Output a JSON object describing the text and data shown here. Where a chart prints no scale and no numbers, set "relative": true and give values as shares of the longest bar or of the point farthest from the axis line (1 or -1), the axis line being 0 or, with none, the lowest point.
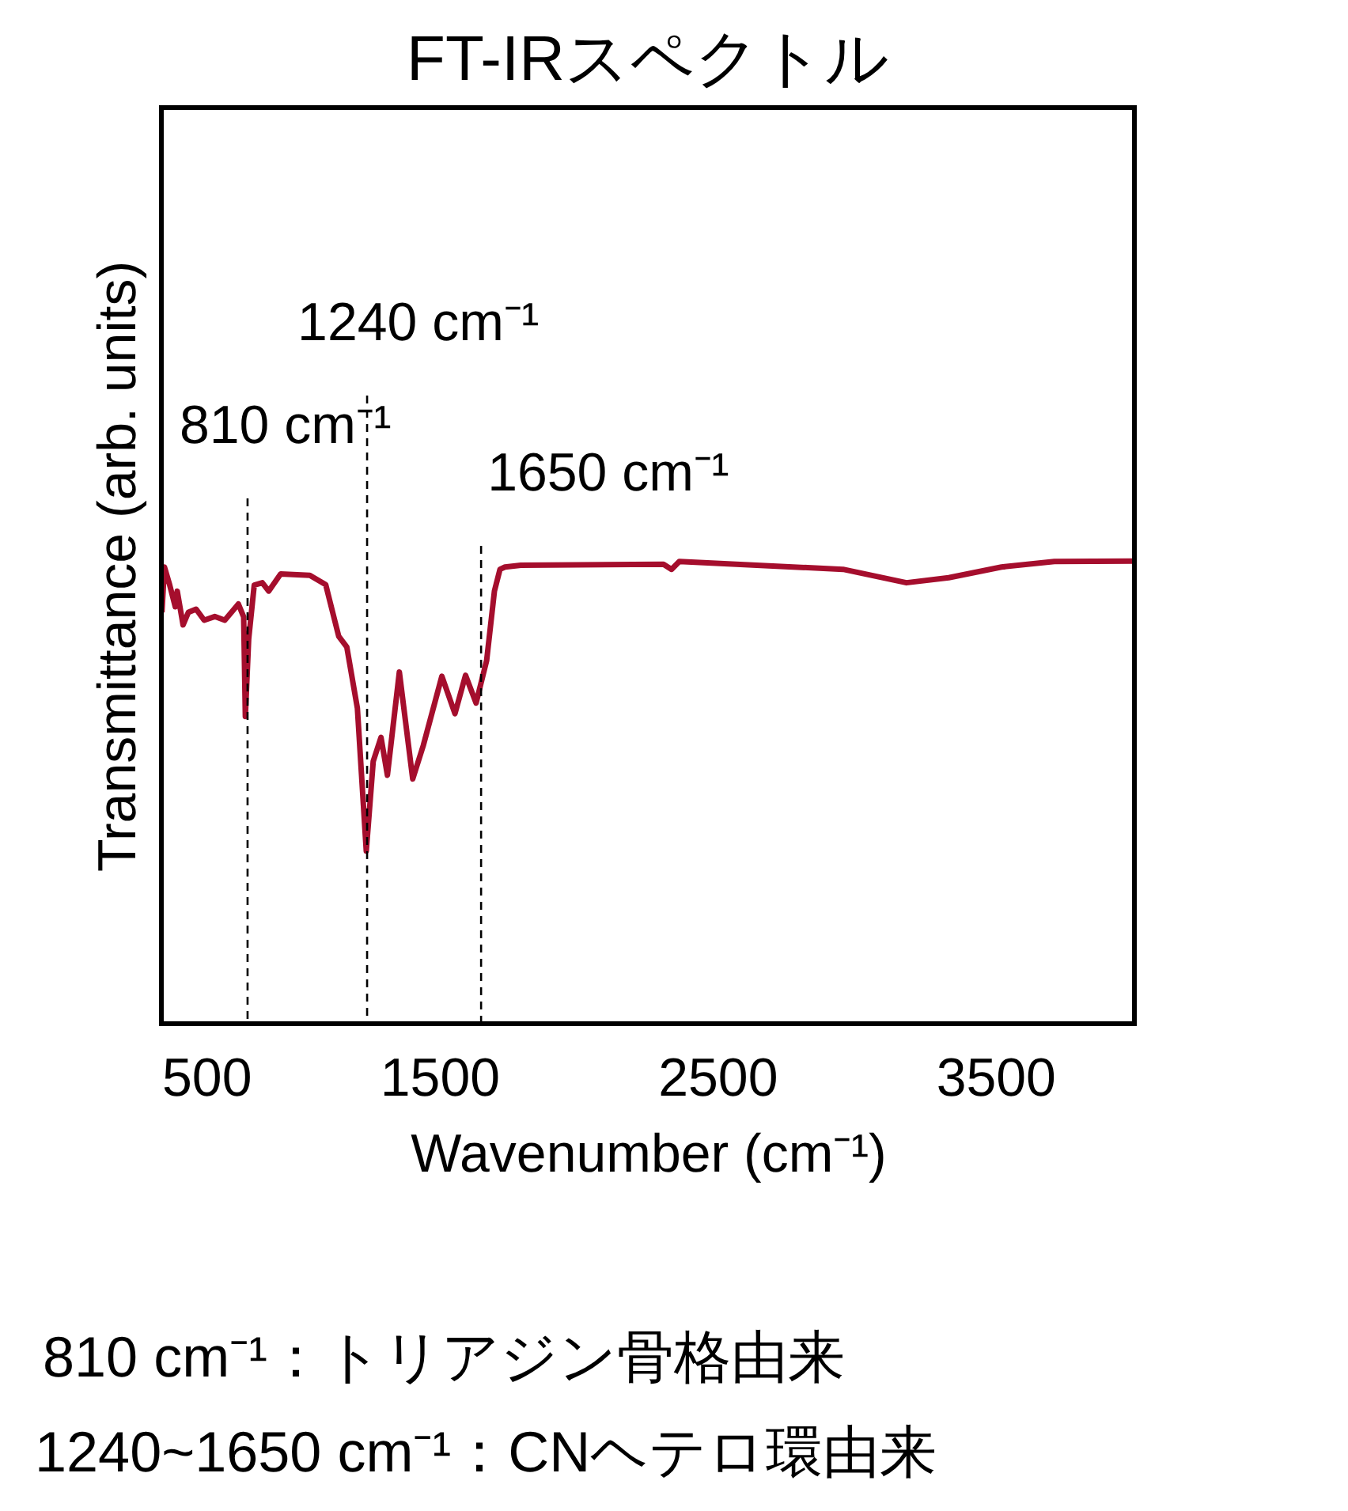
{
  "chart_data": {
    "type": "line",
    "title": "FT-IRスペクトル",
    "xlabel": "Wavenumber (cm⁻¹)",
    "ylabel": "Transmittance (arb. units)",
    "relative": true,
    "xlim": [
      500,
      4000
    ],
    "xticks": [
      500,
      1500,
      2500,
      3500
    ],
    "tick_labels": "x",
    "grid": false,
    "x": [
      502,
      511,
      530,
      550,
      557,
      578,
      597,
      625,
      654,
      692,
      728,
      777,
      796,
      802,
      814,
      834,
      863,
      886,
      929,
      1034,
      1091,
      1138,
      1167,
      1205,
      1237,
      1262,
      1290,
      1313,
      1356,
      1404,
      1442,
      1509,
      1556,
      1594,
      1632,
      1670,
      1698,
      1718,
      1736,
      1793,
      2306,
      2335,
      2363,
      2952,
      3180,
      3332,
      3522,
      3712,
      3997
    ],
    "series": [
      {
        "color": "#a50e2d",
        "values": [
          0.889,
          0.987,
          0.948,
          0.901,
          0.935,
          0.862,
          0.889,
          0.896,
          0.872,
          0.88,
          0.872,
          0.907,
          0.879,
          0.664,
          0.831,
          0.948,
          0.953,
          0.935,
          0.972,
          0.969,
          0.949,
          0.837,
          0.814,
          0.682,
          0.373,
          0.567,
          0.619,
          0.537,
          0.76,
          0.529,
          0.601,
          0.751,
          0.67,
          0.753,
          0.693,
          0.785,
          0.935,
          0.982,
          0.987,
          0.991,
          0.993,
          0.982,
          0.999,
          0.982,
          0.953,
          0.964,
          0.987,
          0.999,
          1.0
        ]
      }
    ],
    "ref_lines": [
      {
        "axis": "x",
        "value": 810,
        "label": "810 cm⁻¹",
        "color": "#000000",
        "line_style": "dashed"
      },
      {
        "axis": "x",
        "value": 1240,
        "label": "1240 cm⁻¹",
        "color": "#000000",
        "line_style": "dashed"
      },
      {
        "axis": "x",
        "value": 1650,
        "label": "1650 cm⁻¹",
        "color": "#000000",
        "line_style": "dashed"
      }
    ],
    "annotations": [
      "810 cm⁻¹：トリアジン骨格由来",
      "1240~1650 cm⁻¹：CNヘテロ環由来"
    ]
  }
}
